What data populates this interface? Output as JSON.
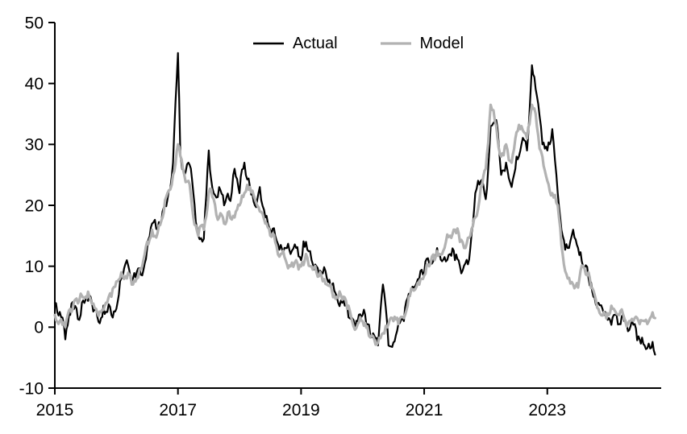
{
  "chart_data": {
    "type": "line",
    "title": "",
    "xlabel": "",
    "ylabel": "",
    "xlim": [
      2015,
      2024.85
    ],
    "ylim": [
      -10,
      50
    ],
    "xticks": [
      2015,
      2017,
      2019,
      2021,
      2023
    ],
    "yticks": [
      -10,
      0,
      10,
      20,
      30,
      40,
      50
    ],
    "grid": false,
    "legend_position": "top-center",
    "axis_color": "#000000",
    "series": [
      {
        "name": "Actual",
        "color": "#000000",
        "stroke_width": 2.2,
        "noise": 1.6,
        "points": [
          [
            2015.0,
            4
          ],
          [
            2015.08,
            2.5
          ],
          [
            2015.17,
            -2
          ],
          [
            2015.25,
            2
          ],
          [
            2015.33,
            3.5
          ],
          [
            2015.42,
            2
          ],
          [
            2015.5,
            4.5
          ],
          [
            2015.58,
            5
          ],
          [
            2015.67,
            3
          ],
          [
            2015.75,
            1.5
          ],
          [
            2015.83,
            2.5
          ],
          [
            2015.92,
            2
          ],
          [
            2016.0,
            3
          ],
          [
            2016.08,
            8
          ],
          [
            2016.17,
            11
          ],
          [
            2016.25,
            7
          ],
          [
            2016.33,
            9
          ],
          [
            2016.42,
            8.5
          ],
          [
            2016.5,
            13
          ],
          [
            2016.58,
            17
          ],
          [
            2016.67,
            16
          ],
          [
            2016.75,
            19
          ],
          [
            2016.83,
            21
          ],
          [
            2016.92,
            27
          ],
          [
            2017.0,
            45
          ],
          [
            2017.04,
            28
          ],
          [
            2017.08,
            26
          ],
          [
            2017.17,
            27
          ],
          [
            2017.25,
            22
          ],
          [
            2017.33,
            15
          ],
          [
            2017.42,
            14.5
          ],
          [
            2017.5,
            29
          ],
          [
            2017.58,
            22
          ],
          [
            2017.67,
            23
          ],
          [
            2017.75,
            20
          ],
          [
            2017.83,
            21
          ],
          [
            2017.92,
            26
          ],
          [
            2018.0,
            22
          ],
          [
            2018.08,
            27
          ],
          [
            2018.17,
            23
          ],
          [
            2018.25,
            20
          ],
          [
            2018.33,
            23
          ],
          [
            2018.42,
            18
          ],
          [
            2018.5,
            16
          ],
          [
            2018.58,
            15
          ],
          [
            2018.67,
            13.5
          ],
          [
            2018.75,
            13
          ],
          [
            2018.83,
            12
          ],
          [
            2018.92,
            13
          ],
          [
            2019.0,
            11
          ],
          [
            2019.08,
            14
          ],
          [
            2019.17,
            11
          ],
          [
            2019.25,
            10
          ],
          [
            2019.33,
            9
          ],
          [
            2019.42,
            8
          ],
          [
            2019.5,
            7
          ],
          [
            2019.58,
            5
          ],
          [
            2019.67,
            4
          ],
          [
            2019.75,
            3.5
          ],
          [
            2019.83,
            1.5
          ],
          [
            2019.92,
            1
          ],
          [
            2020.0,
            2
          ],
          [
            2020.08,
            0.5
          ],
          [
            2020.17,
            -1
          ],
          [
            2020.25,
            -3
          ],
          [
            2020.33,
            7
          ],
          [
            2020.42,
            -3
          ],
          [
            2020.5,
            -2.5
          ],
          [
            2020.58,
            0.5
          ],
          [
            2020.67,
            1
          ],
          [
            2020.75,
            5.5
          ],
          [
            2020.83,
            6.5
          ],
          [
            2020.92,
            8
          ],
          [
            2021.0,
            9
          ],
          [
            2021.08,
            10.5
          ],
          [
            2021.17,
            11.5
          ],
          [
            2021.25,
            12
          ],
          [
            2021.33,
            11.5
          ],
          [
            2021.42,
            12
          ],
          [
            2021.5,
            11
          ],
          [
            2021.58,
            10
          ],
          [
            2021.67,
            10.5
          ],
          [
            2021.75,
            13
          ],
          [
            2021.83,
            22
          ],
          [
            2021.92,
            24
          ],
          [
            2022.0,
            21
          ],
          [
            2022.08,
            33
          ],
          [
            2022.17,
            34
          ],
          [
            2022.25,
            25
          ],
          [
            2022.33,
            27
          ],
          [
            2022.42,
            23
          ],
          [
            2022.5,
            28
          ],
          [
            2022.58,
            30
          ],
          [
            2022.67,
            29
          ],
          [
            2022.75,
            43
          ],
          [
            2022.83,
            38
          ],
          [
            2022.92,
            30
          ],
          [
            2023.0,
            29
          ],
          [
            2023.08,
            32.5
          ],
          [
            2023.17,
            22
          ],
          [
            2023.25,
            15
          ],
          [
            2023.33,
            13
          ],
          [
            2023.42,
            16
          ],
          [
            2023.5,
            13
          ],
          [
            2023.58,
            10
          ],
          [
            2023.67,
            8
          ],
          [
            2023.75,
            5
          ],
          [
            2023.83,
            4
          ],
          [
            2023.92,
            2
          ],
          [
            2024.0,
            1.5
          ],
          [
            2024.08,
            2
          ],
          [
            2024.17,
            0.5
          ],
          [
            2024.25,
            1
          ],
          [
            2024.33,
            -0.5
          ],
          [
            2024.42,
            0.5
          ],
          [
            2024.5,
            -2
          ],
          [
            2024.58,
            -3
          ],
          [
            2024.67,
            -3.5
          ],
          [
            2024.75,
            -4.5
          ]
        ]
      },
      {
        "name": "Model",
        "color": "#b2b2b2",
        "stroke_width": 3.2,
        "noise": 1.2,
        "points": [
          [
            2015.0,
            2
          ],
          [
            2015.08,
            1
          ],
          [
            2015.17,
            0
          ],
          [
            2015.25,
            3
          ],
          [
            2015.33,
            4.5
          ],
          [
            2015.42,
            5.5
          ],
          [
            2015.5,
            5
          ],
          [
            2015.58,
            4.5
          ],
          [
            2015.67,
            3
          ],
          [
            2015.75,
            2.5
          ],
          [
            2015.83,
            4
          ],
          [
            2015.92,
            5
          ],
          [
            2016.0,
            7.5
          ],
          [
            2016.08,
            9
          ],
          [
            2016.17,
            8
          ],
          [
            2016.25,
            7
          ],
          [
            2016.33,
            8
          ],
          [
            2016.42,
            10
          ],
          [
            2016.5,
            14
          ],
          [
            2016.58,
            16
          ],
          [
            2016.67,
            15.5
          ],
          [
            2016.75,
            18
          ],
          [
            2016.83,
            22
          ],
          [
            2016.92,
            25
          ],
          [
            2017.0,
            30
          ],
          [
            2017.08,
            26
          ],
          [
            2017.17,
            24
          ],
          [
            2017.25,
            18
          ],
          [
            2017.33,
            15
          ],
          [
            2017.42,
            16
          ],
          [
            2017.5,
            22
          ],
          [
            2017.58,
            21
          ],
          [
            2017.67,
            18
          ],
          [
            2017.75,
            17
          ],
          [
            2017.83,
            19
          ],
          [
            2017.92,
            18
          ],
          [
            2018.0,
            20
          ],
          [
            2018.08,
            22
          ],
          [
            2018.17,
            23
          ],
          [
            2018.25,
            21
          ],
          [
            2018.33,
            19
          ],
          [
            2018.42,
            17
          ],
          [
            2018.5,
            15
          ],
          [
            2018.58,
            14
          ],
          [
            2018.67,
            12
          ],
          [
            2018.75,
            11
          ],
          [
            2018.83,
            10
          ],
          [
            2018.92,
            11
          ],
          [
            2019.0,
            10
          ],
          [
            2019.08,
            12
          ],
          [
            2019.17,
            10
          ],
          [
            2019.25,
            9
          ],
          [
            2019.33,
            8.5
          ],
          [
            2019.42,
            7
          ],
          [
            2019.5,
            6
          ],
          [
            2019.58,
            5
          ],
          [
            2019.67,
            4.5
          ],
          [
            2019.75,
            3
          ],
          [
            2019.83,
            1
          ],
          [
            2019.92,
            0.5
          ],
          [
            2020.0,
            1
          ],
          [
            2020.08,
            0
          ],
          [
            2020.17,
            -1.5
          ],
          [
            2020.25,
            -2.5
          ],
          [
            2020.33,
            -1
          ],
          [
            2020.42,
            0.5
          ],
          [
            2020.5,
            1
          ],
          [
            2020.58,
            0.5
          ],
          [
            2020.67,
            1.5
          ],
          [
            2020.75,
            5
          ],
          [
            2020.83,
            6
          ],
          [
            2020.92,
            7
          ],
          [
            2021.0,
            8.5
          ],
          [
            2021.08,
            10
          ],
          [
            2021.17,
            11
          ],
          [
            2021.25,
            12
          ],
          [
            2021.33,
            13
          ],
          [
            2021.42,
            15
          ],
          [
            2021.5,
            16
          ],
          [
            2021.58,
            14
          ],
          [
            2021.67,
            13
          ],
          [
            2021.75,
            15
          ],
          [
            2021.83,
            18
          ],
          [
            2021.92,
            23
          ],
          [
            2022.0,
            26
          ],
          [
            2022.08,
            36.5
          ],
          [
            2022.17,
            33
          ],
          [
            2022.25,
            28
          ],
          [
            2022.33,
            30
          ],
          [
            2022.42,
            27
          ],
          [
            2022.5,
            32
          ],
          [
            2022.58,
            33
          ],
          [
            2022.67,
            31
          ],
          [
            2022.75,
            36.5
          ],
          [
            2022.83,
            33
          ],
          [
            2022.92,
            28
          ],
          [
            2023.0,
            24
          ],
          [
            2023.08,
            22
          ],
          [
            2023.17,
            20
          ],
          [
            2023.25,
            12
          ],
          [
            2023.33,
            8
          ],
          [
            2023.42,
            7
          ],
          [
            2023.5,
            6.5
          ],
          [
            2023.58,
            10
          ],
          [
            2023.67,
            9
          ],
          [
            2023.75,
            6
          ],
          [
            2023.83,
            3
          ],
          [
            2023.92,
            2.5
          ],
          [
            2024.0,
            2
          ],
          [
            2024.08,
            3
          ],
          [
            2024.17,
            2
          ],
          [
            2024.25,
            1.5
          ],
          [
            2024.33,
            1
          ],
          [
            2024.42,
            1.5
          ],
          [
            2024.5,
            0.5
          ],
          [
            2024.58,
            1
          ],
          [
            2024.67,
            1.5
          ],
          [
            2024.75,
            1.5
          ]
        ]
      }
    ]
  }
}
